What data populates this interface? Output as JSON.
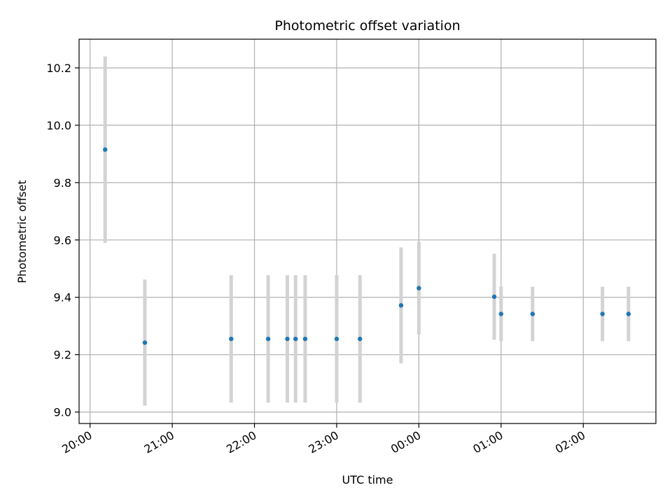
{
  "chart_data": {
    "type": "scatter",
    "title": "Photometric offset variation",
    "xlabel": "UTC time",
    "ylabel": "Photometric offset",
    "x_ticks": [
      "20:00",
      "21:00",
      "22:00",
      "23:00",
      "00:00",
      "01:00",
      "02:00"
    ],
    "y_ticks": [
      "9.0",
      "9.2",
      "9.4",
      "9.6",
      "9.8",
      "10.0",
      "10.2"
    ],
    "xlim": [
      "19:52",
      "02:53"
    ],
    "ylim": [
      8.96,
      10.3
    ],
    "grid": true,
    "marker_color": "#1f77b4",
    "errorbar_color": "#d3d3d3",
    "points": [
      {
        "time": "20:11",
        "value": 9.915,
        "err": 0.325
      },
      {
        "time": "20:40",
        "value": 9.242,
        "err": 0.22
      },
      {
        "time": "21:43",
        "value": 9.255,
        "err": 0.222
      },
      {
        "time": "22:10",
        "value": 9.255,
        "err": 0.222
      },
      {
        "time": "22:24",
        "value": 9.255,
        "err": 0.222
      },
      {
        "time": "22:30",
        "value": 9.255,
        "err": 0.222
      },
      {
        "time": "22:37",
        "value": 9.255,
        "err": 0.222
      },
      {
        "time": "23:00",
        "value": 9.255,
        "err": 0.222
      },
      {
        "time": "23:17",
        "value": 9.255,
        "err": 0.222
      },
      {
        "time": "23:47",
        "value": 9.372,
        "err": 0.202
      },
      {
        "time": "00:00",
        "value": 9.432,
        "err": 0.162
      },
      {
        "time": "00:55",
        "value": 9.402,
        "err": 0.15
      },
      {
        "time": "01:00",
        "value": 9.342,
        "err": 0.095
      },
      {
        "time": "01:23",
        "value": 9.342,
        "err": 0.095
      },
      {
        "time": "02:14",
        "value": 9.342,
        "err": 0.095
      },
      {
        "time": "02:33",
        "value": 9.342,
        "err": 0.095
      }
    ]
  }
}
